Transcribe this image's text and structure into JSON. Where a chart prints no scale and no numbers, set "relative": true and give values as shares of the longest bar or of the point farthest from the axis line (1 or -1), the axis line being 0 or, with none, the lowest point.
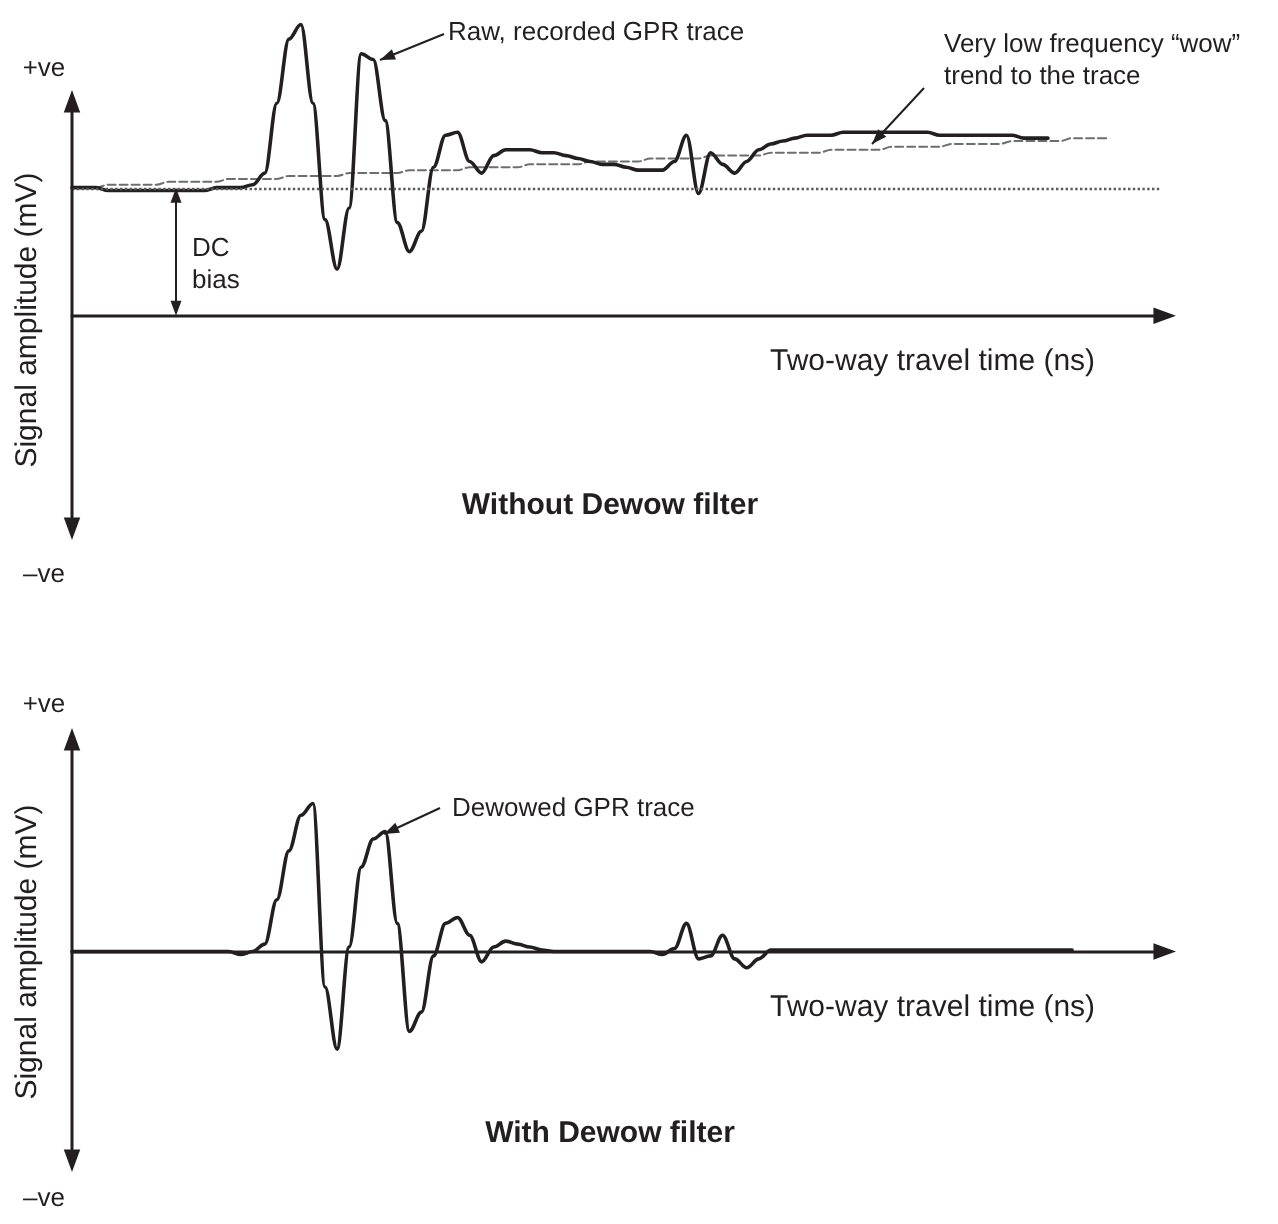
{
  "chart_data": [
    {
      "type": "line",
      "relative": true,
      "marker": "none",
      "line_style": "solid",
      "title": "Without Dewow filter",
      "xlabel": "Two-way travel time (ns)",
      "ylabel": "Signal amplitude (mV)",
      "annotations": [
        "Raw, recorded GPR trace",
        "Very low frequency “wow” trend to the trace",
        "DC bias",
        "+ve",
        "–ve"
      ],
      "categories": [
        null,
        null,
        null,
        null,
        null,
        null,
        null,
        null,
        null,
        null,
        null,
        null,
        null,
        null,
        null,
        null,
        null,
        null,
        null,
        null,
        null,
        null,
        null,
        null,
        null,
        null,
        null,
        null,
        null,
        null,
        null,
        null,
        null,
        null,
        null,
        null,
        null,
        null,
        null,
        null,
        null,
        null,
        null,
        null,
        null,
        null,
        null,
        null,
        null,
        null,
        null,
        null,
        null,
        null,
        null,
        null,
        null,
        null,
        null,
        null,
        null,
        null,
        null,
        null,
        null,
        null,
        null,
        null,
        null,
        null,
        null,
        null,
        null,
        null,
        null,
        null,
        null,
        null,
        null,
        null,
        null,
        null,
        null,
        null,
        null,
        null,
        null
      ],
      "ref_lines": [
        {
          "axis": "y",
          "value": 0.44,
          "color": "#58595b",
          "line_style": "dotted"
        }
      ],
      "series": [
        {
          "color": "#231f20",
          "values": [
            0.44,
            0.44,
            0.44,
            0.43,
            0.43,
            0.43,
            0.43,
            0.43,
            0.43,
            0.43,
            0.43,
            0.43,
            0.44,
            0.44,
            0.44,
            0.45,
            0.49,
            0.73,
            0.95,
            1,
            0.73,
            0.33,
            0.16,
            0.37,
            0.9,
            0.88,
            0.67,
            0.32,
            0.22,
            0.29,
            0.51,
            0.62,
            0.63,
            0.53,
            0.49,
            0.55,
            0.57,
            0.57,
            0.57,
            0.56,
            0.56,
            0.55,
            0.54,
            0.53,
            0.52,
            0.52,
            0.51,
            0.5,
            0.5,
            0.5,
            0.53,
            0.62,
            0.42,
            0.56,
            0.52,
            0.49,
            0.53,
            0.57,
            0.59,
            0.6,
            0.61,
            0.62,
            0.62,
            0.62,
            0.63,
            0.63,
            0.63,
            0.63,
            0.63,
            0.63,
            0.63,
            0.63,
            0.62,
            0.62,
            0.62,
            0.62,
            0.62,
            0.62,
            0.62,
            0.61,
            0.61,
            0.61,
            null,
            null,
            null,
            null,
            null
          ]
        },
        {
          "color": "#6d6e71",
          "line_style": "dashed",
          "values": [
            0.44,
            0.44,
            0.44,
            0.45,
            0.45,
            0.45,
            0.45,
            0.45,
            0.46,
            0.46,
            0.46,
            0.46,
            0.46,
            0.47,
            0.47,
            0.47,
            0.47,
            0.47,
            0.48,
            0.48,
            0.48,
            0.48,
            0.48,
            0.49,
            0.49,
            0.49,
            0.49,
            0.49,
            0.5,
            0.5,
            0.5,
            0.5,
            0.5,
            0.51,
            0.51,
            0.51,
            0.51,
            0.51,
            0.52,
            0.52,
            0.52,
            0.52,
            0.52,
            0.53,
            0.53,
            0.53,
            0.53,
            0.53,
            0.54,
            0.54,
            0.54,
            0.54,
            0.54,
            0.55,
            0.55,
            0.55,
            0.55,
            0.55,
            0.56,
            0.56,
            0.56,
            0.56,
            0.56,
            0.57,
            0.57,
            0.57,
            0.57,
            0.57,
            0.58,
            0.58,
            0.58,
            0.58,
            0.58,
            0.59,
            0.59,
            0.59,
            0.59,
            0.59,
            0.6,
            0.6,
            0.6,
            0.6,
            0.6,
            0.61,
            0.61,
            0.61,
            0.61
          ]
        }
      ]
    },
    {
      "type": "line",
      "relative": true,
      "marker": "none",
      "line_style": "solid",
      "title": "With Dewow filter",
      "xlabel": "Two-way travel time (ns)",
      "ylabel": "Signal amplitude (mV)",
      "annotations": [
        "Dewowed GPR trace",
        "+ve",
        "–ve"
      ],
      "categories": [
        null,
        null,
        null,
        null,
        null,
        null,
        null,
        null,
        null,
        null,
        null,
        null,
        null,
        null,
        null,
        null,
        null,
        null,
        null,
        null,
        null,
        null,
        null,
        null,
        null,
        null,
        null,
        null,
        null,
        null,
        null,
        null,
        null,
        null,
        null,
        null,
        null,
        null,
        null,
        null,
        null,
        null,
        null,
        null,
        null,
        null,
        null,
        null,
        null,
        null,
        null,
        null,
        null,
        null,
        null,
        null,
        null,
        null,
        null,
        null,
        null,
        null,
        null,
        null,
        null,
        null,
        null,
        null,
        null,
        null,
        null,
        null,
        null,
        null,
        null,
        null,
        null,
        null,
        null,
        null,
        null,
        null,
        null,
        null,
        null,
        null,
        null
      ],
      "series": [
        {
          "color": "#231f20",
          "values": [
            0,
            0,
            0,
            0,
            0,
            0,
            0,
            0,
            0,
            0,
            0,
            0,
            0,
            0,
            -0.02,
            0,
            0.05,
            0.35,
            0.68,
            0.92,
            1,
            -0.24,
            -0.66,
            0.03,
            0.57,
            0.76,
            0.81,
            0.19,
            -0.54,
            -0.41,
            -0.03,
            0.19,
            0.23,
            0.11,
            -0.07,
            0.03,
            0.07,
            0.05,
            0.03,
            0.01,
            0,
            0,
            0,
            0,
            0,
            0,
            0,
            0,
            0,
            -0.02,
            0.02,
            0.19,
            -0.05,
            -0.03,
            0.11,
            -0.05,
            -0.11,
            -0.05,
            0.01,
            0.01,
            0.01,
            0.01,
            0.01,
            0.01,
            0.01,
            0.01,
            0.01,
            0.01,
            0.01,
            0.01,
            0.01,
            0.01,
            0.01,
            0.01,
            0.01,
            0.01,
            0.01,
            0.01,
            0.01,
            0.01,
            0.01,
            0.01,
            0.01,
            0.01,
            null,
            null,
            null
          ]
        }
      ]
    }
  ]
}
